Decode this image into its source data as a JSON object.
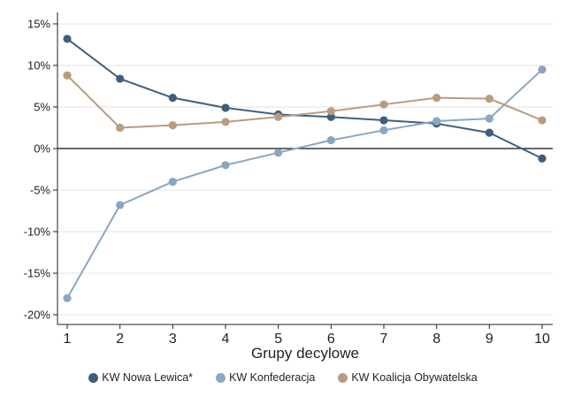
{
  "chart_data": {
    "type": "line",
    "xlabel": "Grupy decylowe",
    "ylabel": "",
    "x": [
      1,
      2,
      3,
      4,
      5,
      6,
      7,
      8,
      9,
      10
    ],
    "ylim": [
      -20,
      15
    ],
    "yticks": [
      -20,
      -15,
      -10,
      -5,
      0,
      5,
      10,
      15
    ],
    "ytick_labels": [
      "-20%",
      "-15%",
      "-10%",
      "-5%",
      "0%",
      "5%",
      "10%",
      "15%"
    ],
    "grid": true,
    "zero_line": true,
    "legend_position": "bottom",
    "series": [
      {
        "name": "KW Nowa Lewica*",
        "color": "#3e5f7c",
        "values": [
          13.2,
          8.4,
          6.1,
          4.9,
          4.1,
          3.8,
          3.4,
          3.0,
          1.9,
          -1.2
        ]
      },
      {
        "name": "KW Konfederacja",
        "color": "#8aa6c1",
        "values": [
          -18.0,
          -6.8,
          -4.0,
          -2.0,
          -0.5,
          1.0,
          2.2,
          3.3,
          3.6,
          9.5
        ]
      },
      {
        "name": "KW Koalicja Obywatelska",
        "color": "#b99b80",
        "values": [
          8.8,
          2.5,
          2.8,
          3.2,
          3.8,
          4.5,
          5.3,
          6.1,
          6.0,
          3.4
        ]
      }
    ]
  }
}
